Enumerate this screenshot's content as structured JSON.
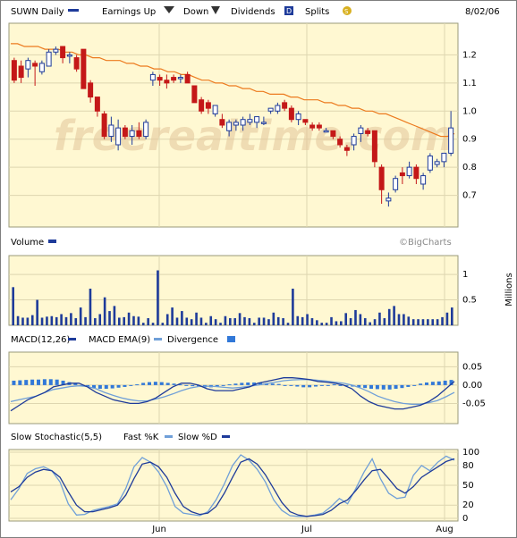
{
  "header": {
    "symbol_label": "SUWN Daily",
    "earnings_label": "Earnings Up",
    "down_label": "Down",
    "dividends_label": "Dividends",
    "dividends_badge": "D",
    "splits_label": "Splits",
    "splits_badge": "S",
    "date": "8/02/06"
  },
  "watermark": "freerealtime.com",
  "credit": "©BigCharts",
  "colors": {
    "panel_bg": "#fff8d2",
    "grid": "#ded6b0",
    "up_candle": "#1e3b9a",
    "down_candle": "#c41818",
    "moving_average": "#ec7a1e",
    "volume_bar": "#1e3b9a",
    "macd_line": "#1e3b9a",
    "ema_line": "#6f9fd8",
    "divergence": "#3178d8",
    "fast_k": "#6f9fd8",
    "slow_d": "#1e3b9a"
  },
  "chart_data": [
    {
      "type": "candlestick",
      "ylim": [
        0.6,
        1.3
      ],
      "yticks": [
        "0.7",
        "0.8",
        "0.9",
        "1.0",
        "1.1",
        "1.2"
      ],
      "xticks": [
        "Jun",
        "Jul",
        "Aug"
      ],
      "ohlc": [
        [
          1.18,
          1.19,
          1.1,
          1.11
        ],
        [
          1.16,
          1.18,
          1.1,
          1.12
        ],
        [
          1.15,
          1.19,
          1.12,
          1.18
        ],
        [
          1.17,
          1.18,
          1.09,
          1.16
        ],
        [
          1.14,
          1.18,
          1.13,
          1.17
        ],
        [
          1.16,
          1.22,
          1.16,
          1.21
        ],
        [
          1.21,
          1.23,
          1.2,
          1.22
        ],
        [
          1.23,
          1.23,
          1.17,
          1.19
        ],
        [
          1.2,
          1.21,
          1.17,
          1.2
        ],
        [
          1.19,
          1.2,
          1.14,
          1.15
        ],
        [
          1.22,
          1.22,
          1.08,
          1.08
        ],
        [
          1.1,
          1.11,
          1.03,
          1.05
        ],
        [
          1.05,
          1.05,
          0.98,
          1.0
        ],
        [
          0.99,
          1.0,
          0.9,
          0.91
        ],
        [
          0.91,
          0.98,
          0.89,
          0.95
        ],
        [
          0.88,
          0.97,
          0.86,
          0.94
        ],
        [
          0.94,
          0.95,
          0.9,
          0.91
        ],
        [
          0.91,
          0.95,
          0.88,
          0.93
        ],
        [
          0.93,
          0.96,
          0.9,
          0.91
        ],
        [
          0.91,
          0.97,
          0.9,
          0.96
        ],
        [
          1.11,
          1.14,
          1.09,
          1.13
        ],
        [
          1.12,
          1.13,
          1.09,
          1.11
        ],
        [
          1.11,
          1.13,
          1.08,
          1.1
        ],
        [
          1.12,
          1.13,
          1.1,
          1.11
        ],
        [
          1.12,
          1.13,
          1.1,
          1.12
        ],
        [
          1.13,
          1.14,
          1.1,
          1.1
        ],
        [
          1.09,
          1.09,
          1.03,
          1.03
        ],
        [
          1.04,
          1.05,
          0.99,
          1.0
        ],
        [
          1.03,
          1.04,
          0.99,
          1.01
        ],
        [
          0.99,
          1.02,
          0.98,
          1.02
        ],
        [
          0.97,
          0.99,
          0.94,
          0.95
        ],
        [
          0.93,
          0.97,
          0.91,
          0.96
        ],
        [
          0.95,
          0.97,
          0.93,
          0.96
        ],
        [
          0.95,
          0.98,
          0.93,
          0.97
        ],
        [
          0.96,
          0.99,
          0.95,
          0.97
        ],
        [
          0.96,
          0.98,
          0.94,
          0.98
        ],
        [
          0.96,
          0.98,
          0.95,
          0.96
        ],
        [
          1.0,
          1.01,
          0.99,
          1.01
        ],
        [
          1.0,
          1.03,
          0.99,
          1.02
        ],
        [
          1.03,
          1.04,
          1.0,
          1.01
        ],
        [
          1.01,
          1.02,
          0.96,
          0.97
        ],
        [
          0.97,
          1.0,
          0.95,
          0.99
        ],
        [
          0.97,
          0.97,
          0.95,
          0.96
        ],
        [
          0.95,
          0.96,
          0.93,
          0.94
        ],
        [
          0.95,
          0.96,
          0.93,
          0.94
        ],
        [
          0.93,
          0.94,
          0.93,
          0.93
        ],
        [
          0.93,
          0.93,
          0.9,
          0.91
        ],
        [
          0.9,
          0.91,
          0.87,
          0.88
        ],
        [
          0.87,
          0.88,
          0.84,
          0.86
        ],
        [
          0.88,
          0.92,
          0.86,
          0.91
        ],
        [
          0.92,
          0.95,
          0.89,
          0.94
        ],
        [
          0.93,
          0.94,
          0.91,
          0.92
        ],
        [
          0.93,
          0.93,
          0.8,
          0.82
        ],
        [
          0.8,
          0.81,
          0.67,
          0.72
        ],
        [
          0.68,
          0.71,
          0.66,
          0.69
        ],
        [
          0.72,
          0.77,
          0.71,
          0.76
        ],
        [
          0.78,
          0.8,
          0.74,
          0.77
        ],
        [
          0.77,
          0.82,
          0.76,
          0.8
        ],
        [
          0.8,
          0.81,
          0.74,
          0.76
        ],
        [
          0.74,
          0.78,
          0.72,
          0.77
        ],
        [
          0.79,
          0.85,
          0.78,
          0.84
        ],
        [
          0.81,
          0.83,
          0.8,
          0.82
        ],
        [
          0.82,
          0.85,
          0.8,
          0.85
        ],
        [
          0.85,
          1.0,
          0.84,
          0.94
        ]
      ],
      "moving_average": [
        1.24,
        1.24,
        1.23,
        1.23,
        1.23,
        1.22,
        1.22,
        1.22,
        1.21,
        1.21,
        1.2,
        1.2,
        1.19,
        1.19,
        1.18,
        1.18,
        1.18,
        1.17,
        1.17,
        1.16,
        1.16,
        1.15,
        1.15,
        1.14,
        1.14,
        1.13,
        1.13,
        1.12,
        1.11,
        1.11,
        1.1,
        1.1,
        1.09,
        1.09,
        1.08,
        1.08,
        1.07,
        1.07,
        1.06,
        1.06,
        1.06,
        1.05,
        1.05,
        1.04,
        1.04,
        1.04,
        1.03,
        1.03,
        1.02,
        1.02,
        1.01,
        1.01,
        1.0,
        1.0,
        0.99,
        0.99,
        0.98,
        0.97,
        0.96,
        0.95,
        0.94,
        0.93,
        0.92,
        0.91,
        0.91,
        0.92
      ]
    },
    {
      "type": "bar",
      "title": "Volume",
      "ylabel": "Millions",
      "ylim": [
        0,
        1.3
      ],
      "yticks": [
        "0.5",
        "1"
      ],
      "values": [
        0.75,
        0.18,
        0.15,
        0.15,
        0.2,
        0.5,
        0.15,
        0.17,
        0.18,
        0.16,
        0.22,
        0.16,
        0.24,
        0.14,
        0.35,
        0.16,
        0.72,
        0.14,
        0.22,
        0.55,
        0.28,
        0.38,
        0.15,
        0.16,
        0.25,
        0.18,
        0.17,
        0.05,
        0.14,
        0.05,
        1.08,
        0.05,
        0.22,
        0.35,
        0.15,
        0.28,
        0.15,
        0.12,
        0.25,
        0.15,
        0.05,
        0.18,
        0.12,
        0.05,
        0.18,
        0.14,
        0.14,
        0.24,
        0.16,
        0.14,
        0.05,
        0.15,
        0.15,
        0.12,
        0.25,
        0.16,
        0.14,
        0.05,
        0.72,
        0.18,
        0.16,
        0.22,
        0.14,
        0.1,
        0.05,
        0.05,
        0.16,
        0.08,
        0.08,
        0.24,
        0.14,
        0.3,
        0.22,
        0.14,
        0.06,
        0.12,
        0.25,
        0.14,
        0.32,
        0.38,
        0.22,
        0.22,
        0.17,
        0.12,
        0.12,
        0.12,
        0.12,
        0.12,
        0.12,
        0.16,
        0.25,
        0.35
      ]
    },
    {
      "type": "line",
      "title": "MACD(12,26)",
      "series": [
        {
          "name": "MACD(12,26)",
          "values": [
            -0.07,
            -0.055,
            -0.04,
            -0.03,
            -0.02,
            -0.005,
            0.0,
            0.005,
            0.005,
            -0.005,
            -0.02,
            -0.03,
            -0.04,
            -0.045,
            -0.05,
            -0.05,
            -0.045,
            -0.035,
            -0.02,
            -0.005,
            0.005,
            0.005,
            0.0,
            -0.01,
            -0.015,
            -0.015,
            -0.015,
            -0.01,
            -0.005,
            0.005,
            0.01,
            0.015,
            0.02,
            0.02,
            0.018,
            0.015,
            0.01,
            0.008,
            0.005,
            0.0,
            -0.01,
            -0.03,
            -0.045,
            -0.055,
            -0.06,
            -0.065,
            -0.065,
            -0.06,
            -0.055,
            -0.045,
            -0.03,
            -0.01,
            0.01
          ]
        },
        {
          "name": "MACD EMA(9)",
          "values": [
            -0.045,
            -0.04,
            -0.035,
            -0.03,
            -0.02,
            -0.012,
            -0.008,
            -0.004,
            -0.002,
            -0.004,
            -0.01,
            -0.02,
            -0.028,
            -0.035,
            -0.04,
            -0.043,
            -0.043,
            -0.038,
            -0.032,
            -0.024,
            -0.015,
            -0.008,
            -0.004,
            -0.003,
            -0.004,
            -0.006,
            -0.008,
            -0.006,
            -0.003,
            0.0,
            0.004,
            0.008,
            0.012,
            0.014,
            0.015,
            0.015,
            0.013,
            0.011,
            0.008,
            0.005,
            0.0,
            -0.008,
            -0.018,
            -0.03,
            -0.038,
            -0.045,
            -0.05,
            -0.052,
            -0.052,
            -0.048,
            -0.042,
            -0.032,
            -0.02
          ]
        },
        {
          "name": "Divergence",
          "values": [
            0.012,
            0.013,
            0.014,
            0.015,
            0.015,
            0.016,
            0.016,
            0.015,
            0.012,
            0.008,
            0.004,
            0.0,
            -0.005,
            -0.008,
            -0.01,
            -0.01,
            -0.009,
            -0.007,
            -0.005,
            -0.002,
            0.002,
            0.006,
            0.008,
            0.009,
            0.008,
            0.006,
            0.004,
            0.002,
            -0.001,
            -0.003,
            -0.005,
            -0.006,
            -0.006,
            -0.004,
            -0.002,
            0.002,
            0.004,
            0.006,
            0.007,
            0.007,
            0.006,
            0.005,
            0.004,
            0.003,
            0.0,
            -0.002,
            -0.004,
            -0.006,
            -0.006,
            -0.004,
            -0.002,
            0.0,
            0.002,
            0.0,
            -0.002,
            -0.004,
            -0.006,
            -0.008,
            -0.01,
            -0.011,
            -0.012,
            -0.012,
            -0.01,
            -0.008,
            -0.005,
            0.0,
            0.004,
            0.007,
            0.009,
            0.01,
            0.012,
            0.014
          ]
        }
      ],
      "ylim": [
        -0.1,
        0.08
      ],
      "yticks": [
        "0.05",
        "0.00",
        "-0.05"
      ]
    },
    {
      "type": "line",
      "title": "Slow Stochastic(5,5)",
      "series": [
        {
          "name": "Fast %K",
          "values": [
            28,
            45,
            68,
            75,
            78,
            72,
            55,
            22,
            5,
            6,
            12,
            15,
            18,
            22,
            45,
            78,
            92,
            85,
            70,
            48,
            18,
            8,
            6,
            4,
            10,
            28,
            52,
            80,
            96,
            88,
            74,
            55,
            28,
            12,
            4,
            3,
            3,
            5,
            8,
            18,
            30,
            22,
            45,
            70,
            90,
            60,
            38,
            30,
            32,
            65,
            80,
            72,
            85,
            94,
            88
          ]
        },
        {
          "name": "Slow %D",
          "values": [
            40,
            48,
            62,
            70,
            74,
            72,
            62,
            40,
            20,
            10,
            10,
            13,
            16,
            20,
            35,
            60,
            82,
            85,
            78,
            62,
            38,
            18,
            10,
            6,
            8,
            18,
            38,
            62,
            85,
            90,
            82,
            66,
            45,
            24,
            10,
            5,
            3,
            4,
            6,
            12,
            22,
            28,
            42,
            58,
            72,
            74,
            60,
            45,
            38,
            48,
            62,
            70,
            78,
            86,
            90
          ]
        }
      ],
      "ylim": [
        0,
        100
      ],
      "yticks": [
        "100",
        "80",
        "50",
        "20",
        "0"
      ],
      "xticks": [
        "Jun",
        "Jul",
        "Aug"
      ]
    }
  ]
}
